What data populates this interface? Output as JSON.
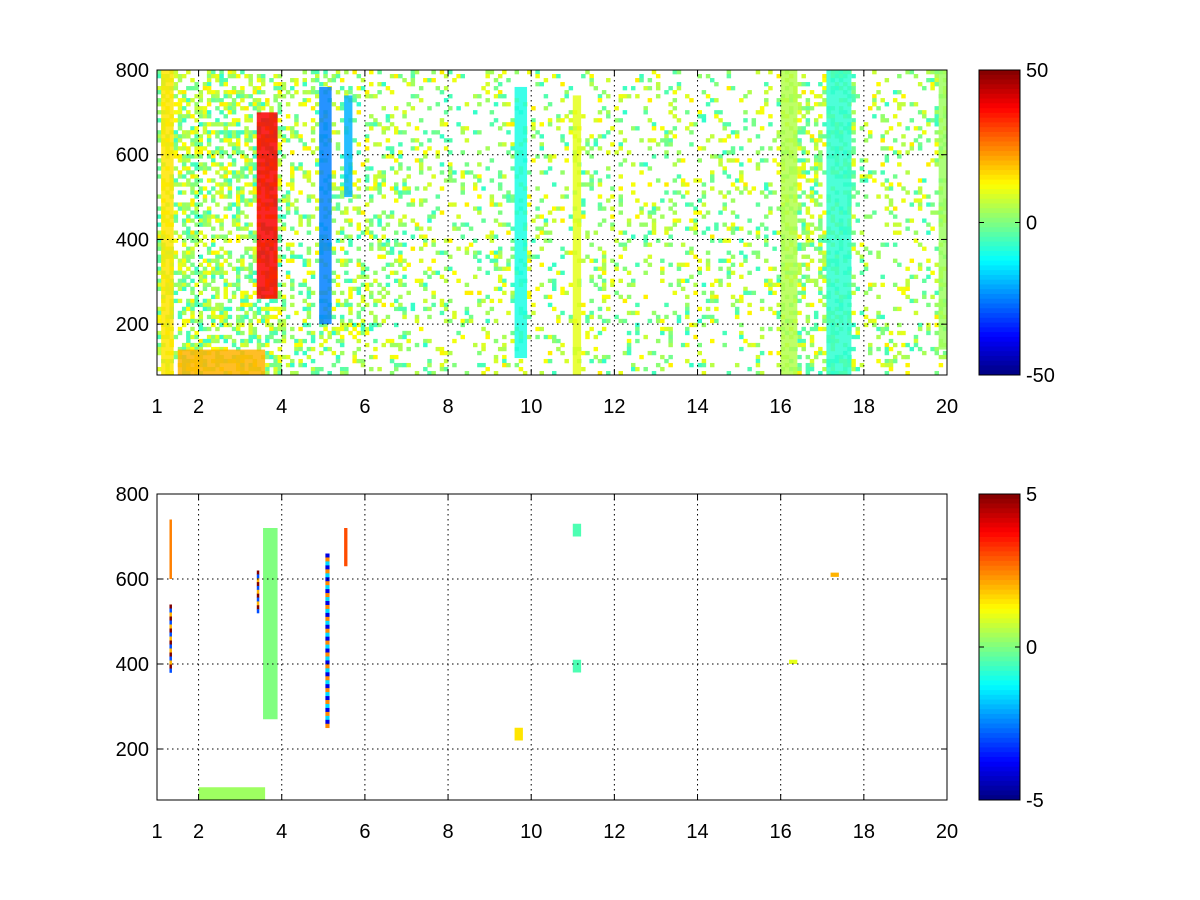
{
  "chart_data": [
    {
      "type": "heatmap",
      "title": "",
      "xlabel": "",
      "ylabel": "",
      "xlim": [
        1,
        20
      ],
      "ylim": [
        80,
        800
      ],
      "xticks": [
        1,
        2,
        4,
        6,
        8,
        10,
        12,
        14,
        16,
        18,
        20
      ],
      "xtick_labels": [
        "1",
        "2",
        "4",
        "6",
        "8",
        "10",
        "12",
        "14",
        "16",
        "18",
        "20"
      ],
      "yticks": [
        200,
        400,
        600,
        800
      ],
      "ytick_labels": [
        "200",
        "400",
        "600",
        "800"
      ],
      "grid": true,
      "colormap": "jet",
      "clim": [
        -50,
        50
      ],
      "colorbar_ticks": [
        -50,
        0,
        50
      ],
      "colorbar_tick_labels": [
        "-50",
        "0",
        "50"
      ],
      "features": [
        {
          "x": [
            1.1,
            1.4
          ],
          "y": [
            80,
            800
          ],
          "value": 15
        },
        {
          "x": [
            3.4,
            3.9
          ],
          "y": [
            260,
            700
          ],
          "value": 38
        },
        {
          "x": [
            1.5,
            3.6
          ],
          "y": [
            80,
            140
          ],
          "value": 20
        },
        {
          "x": [
            4.9,
            5.2
          ],
          "y": [
            200,
            760
          ],
          "value": -25
        },
        {
          "x": [
            5.5,
            5.7
          ],
          "y": [
            500,
            740
          ],
          "value": -20
        },
        {
          "x": [
            9.6,
            9.9
          ],
          "y": [
            120,
            760
          ],
          "value": -10
        },
        {
          "x": [
            11.0,
            11.2
          ],
          "y": [
            80,
            740
          ],
          "value": 10
        },
        {
          "x": [
            16.0,
            16.4
          ],
          "y": [
            80,
            800
          ],
          "value": 5
        },
        {
          "x": [
            17.1,
            17.7
          ],
          "y": [
            80,
            800
          ],
          "value": -8
        },
        {
          "x": [
            19.8,
            20.0
          ],
          "y": [
            140,
            800
          ],
          "value": 3
        }
      ]
    },
    {
      "type": "heatmap",
      "title": "",
      "xlabel": "",
      "ylabel": "",
      "xlim": [
        1,
        20
      ],
      "ylim": [
        80,
        800
      ],
      "xticks": [
        1,
        2,
        4,
        6,
        8,
        10,
        12,
        14,
        16,
        18,
        20
      ],
      "xtick_labels": [
        "1",
        "2",
        "4",
        "6",
        "8",
        "10",
        "12",
        "14",
        "16",
        "18",
        "20"
      ],
      "yticks": [
        200,
        400,
        600,
        800
      ],
      "ytick_labels": [
        "200",
        "400",
        "600",
        "800"
      ],
      "grid": true,
      "colormap": "jet",
      "clim": [
        -5,
        5
      ],
      "colorbar_ticks": [
        -5,
        0,
        5
      ],
      "colorbar_tick_labels": [
        "-5",
        "0",
        "5"
      ],
      "features": [
        {
          "x": [
            1.3,
            1.36
          ],
          "y": [
            380,
            540
          ],
          "value": 5
        },
        {
          "x": [
            1.3,
            1.36
          ],
          "y": [
            600,
            740
          ],
          "value": 2.5
        },
        {
          "x": [
            3.4,
            3.46
          ],
          "y": [
            520,
            620
          ],
          "value": 5
        },
        {
          "x": [
            3.55,
            3.9
          ],
          "y": [
            270,
            720
          ],
          "value": 0
        },
        {
          "x": [
            5.05,
            5.15
          ],
          "y": [
            250,
            660
          ],
          "value": -4
        },
        {
          "x": [
            5.5,
            5.58
          ],
          "y": [
            630,
            720
          ],
          "value": 3
        },
        {
          "x": [
            2.0,
            3.6
          ],
          "y": [
            80,
            110
          ],
          "value": 0.3
        },
        {
          "x": [
            11.0,
            11.2
          ],
          "y": [
            700,
            730
          ],
          "value": -0.5
        },
        {
          "x": [
            11.0,
            11.2
          ],
          "y": [
            380,
            410
          ],
          "value": -0.5
        },
        {
          "x": [
            9.6,
            9.8
          ],
          "y": [
            220,
            250
          ],
          "value": 1.5
        },
        {
          "x": [
            17.2,
            17.4
          ],
          "y": [
            605,
            615
          ],
          "value": 2
        },
        {
          "x": [
            16.2,
            16.4
          ],
          "y": [
            400,
            410
          ],
          "value": 1
        }
      ]
    }
  ]
}
